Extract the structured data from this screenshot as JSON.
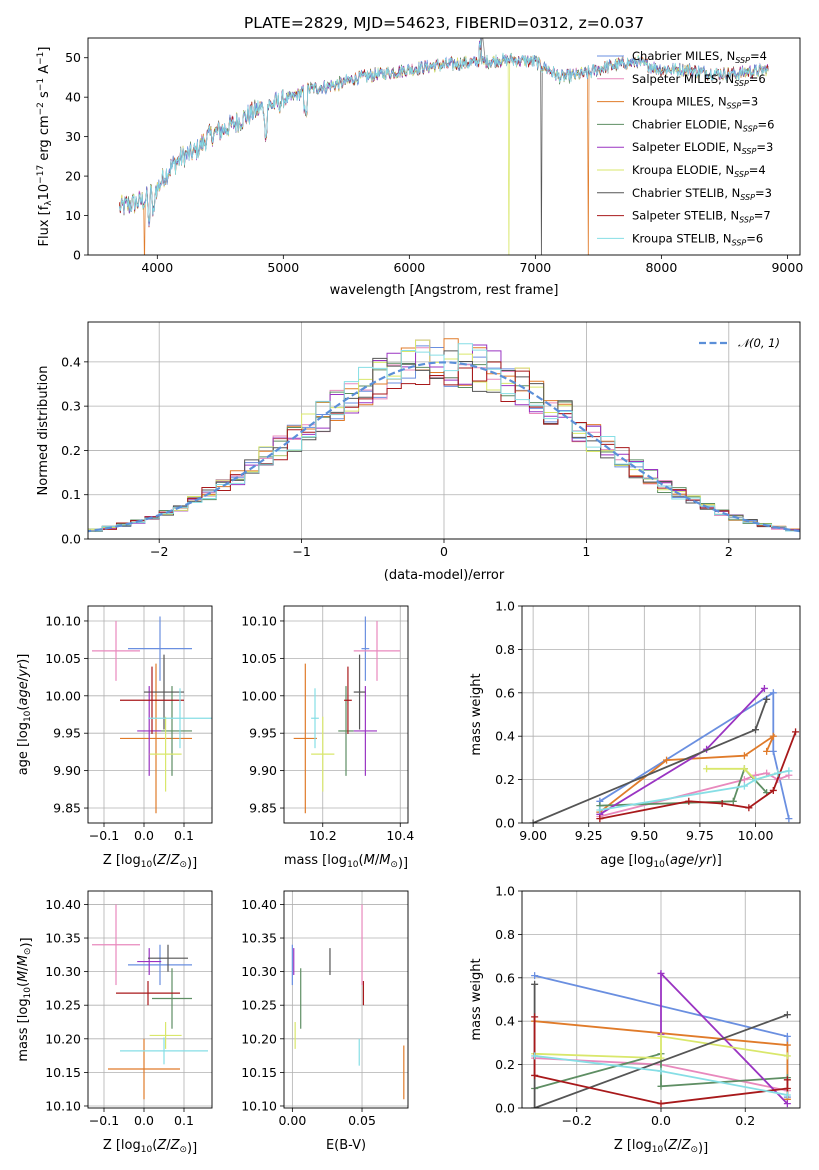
{
  "colors": {
    "Chabrier MILES": "#6a8fe0",
    "Salpeter MILES": "#e889bd",
    "Kroupa MILES": "#e07b2a",
    "Chabrier ELODIE": "#5e8e63",
    "Salpeter ELODIE": "#9a34c2",
    "Kroupa ELODIE": "#d9e76b",
    "Chabrier STELIB": "#555555",
    "Salpeter STELIB": "#a8191b",
    "Kroupa STELIB": "#86dee5"
  },
  "chart_data": [
    {
      "id": "spectrum",
      "type": "line",
      "title": "PLATE=2829, MJD=54623, FIBERID=0312, z=0.037",
      "xlabel": "wavelength [Angstrom, rest frame]",
      "ylabel": "Flux [f",
      "ylabel_parts": {
        "a": "Flux [f",
        "sub": "λ",
        "b": "10",
        "sup1": "−17",
        "c": " erg cm",
        "sup2": "−2",
        "d": " s",
        "sup3": "−1",
        "e": " A",
        "sup4": "−1",
        "f": "]"
      },
      "xlim": [
        3450,
        9100
      ],
      "ylim": [
        0,
        55
      ],
      "xticks": [
        "4000",
        "5000",
        "6000",
        "7000",
        "8000",
        "9000"
      ],
      "yticks": [
        "0",
        "10",
        "20",
        "30",
        "40",
        "50"
      ],
      "wavelength_range": [
        3700,
        8850
      ],
      "trend": [
        [
          3700,
          12
        ],
        [
          3800,
          13
        ],
        [
          3900,
          14
        ],
        [
          4000,
          17
        ],
        [
          4100,
          22
        ],
        [
          4200,
          25
        ],
        [
          4300,
          26
        ],
        [
          4400,
          30
        ],
        [
          4600,
          33
        ],
        [
          4800,
          37
        ],
        [
          5000,
          39
        ],
        [
          5200,
          42
        ],
        [
          5400,
          43
        ],
        [
          5600,
          45
        ],
        [
          5800,
          46
        ],
        [
          6000,
          47
        ],
        [
          6200,
          48
        ],
        [
          6400,
          48.5
        ],
        [
          6600,
          49
        ],
        [
          6800,
          49.5
        ],
        [
          7000,
          49
        ],
        [
          7200,
          45
        ],
        [
          7400,
          46
        ],
        [
          7600,
          48
        ],
        [
          7800,
          49
        ],
        [
          8000,
          47
        ],
        [
          8200,
          47
        ],
        [
          8400,
          46
        ],
        [
          8600,
          46
        ],
        [
          8850,
          47
        ]
      ],
      "series": [
        {
          "name": "Chabrier MILES",
          "nssp": "4"
        },
        {
          "name": "Salpeter MILES",
          "nssp": "6"
        },
        {
          "name": "Kroupa MILES",
          "nssp": "3"
        },
        {
          "name": "Chabrier ELODIE",
          "nssp": "6"
        },
        {
          "name": "Salpeter ELODIE",
          "nssp": "3"
        },
        {
          "name": "Kroupa ELODIE",
          "nssp": "4"
        },
        {
          "name": "Chabrier STELIB",
          "nssp": "3"
        },
        {
          "name": "Salpeter STELIB",
          "nssp": "7"
        },
        {
          "name": "Kroupa STELIB",
          "nssp": "6"
        }
      ],
      "dropouts": [
        {
          "series": "Kroupa MILES",
          "x": 3900
        },
        {
          "series": "Kroupa ELODIE",
          "x": 6790
        },
        {
          "series": "Chabrier STELIB",
          "x": 7050
        },
        {
          "series": "Kroupa MILES",
          "x": 7420
        }
      ]
    },
    {
      "id": "residual-histogram",
      "type": "step",
      "xlabel": "(data-model)/error",
      "ylabel": "Normed distribution",
      "xlim": [
        -2.5,
        2.5
      ],
      "ylim": [
        0,
        0.49
      ],
      "xticks": [
        "−2",
        "−1",
        "0",
        "1",
        "2"
      ],
      "yticks": [
        "0.0",
        "0.1",
        "0.2",
        "0.3",
        "0.4"
      ],
      "legend": {
        "label": "𝒩(0, 1)",
        "placement": "top-right"
      },
      "bin_width": 0.1
    },
    {
      "id": "age-vs-Z",
      "type": "errorbar",
      "xlabel": "Z [log10(Z/Z⊙)]",
      "ylabel": "age  [log10(age/yr)]",
      "xlim": [
        -0.14,
        0.17
      ],
      "ylim": [
        9.83,
        10.12
      ],
      "xticks": [
        "−0.1",
        "0.0",
        "0.1"
      ],
      "yticks": [
        "9.85",
        "9.90",
        "9.95",
        "10.00",
        "10.05",
        "10.10"
      ],
      "points": [
        {
          "series": "Chabrier MILES",
          "x": 0.04,
          "y": 10.063,
          "xerr": 0.08,
          "yerr": 0.043
        },
        {
          "series": "Salpeter MILES",
          "x": -0.07,
          "y": 10.06,
          "xerr": 0.06,
          "yerr": 0.04
        },
        {
          "series": "Kroupa MILES",
          "x": 0.03,
          "y": 9.943,
          "xerr": 0.09,
          "yerr": 0.1
        },
        {
          "series": "Chabrier ELODIE",
          "x": 0.07,
          "y": 9.953,
          "xerr": 0.05,
          "yerr": 0.06
        },
        {
          "series": "Salpeter ELODIE",
          "x": 0.013,
          "y": 9.953,
          "xerr": 0.03,
          "yerr": 0.06
        },
        {
          "series": "Kroupa ELODIE",
          "x": 0.054,
          "y": 9.922,
          "xerr": 0.04,
          "yerr": 0.05
        },
        {
          "series": "Chabrier STELIB",
          "x": 0.05,
          "y": 10.005,
          "xerr": 0.05,
          "yerr": 0.05
        },
        {
          "series": "Salpeter STELIB",
          "x": 0.02,
          "y": 9.994,
          "xerr": 0.08,
          "yerr": 0.045
        },
        {
          "series": "Kroupa STELIB",
          "x": 0.09,
          "y": 9.97,
          "xerr": 0.08,
          "yerr": 0.04
        }
      ]
    },
    {
      "id": "age-vs-mass",
      "type": "errorbar",
      "xlabel": "mass [log10(M/M⊙)]",
      "xlim": [
        10.1,
        10.42
      ],
      "ylim": [
        9.83,
        10.12
      ],
      "xticks": [
        "10.2",
        "10.4"
      ],
      "yticks": [
        "9.85",
        "9.90",
        "9.95",
        "10.00",
        "10.05",
        "10.10"
      ],
      "points": [
        {
          "series": "Chabrier MILES",
          "x": 10.31,
          "y": 10.063,
          "xerr": 0.01,
          "yerr": 0.043
        },
        {
          "series": "Salpeter MILES",
          "x": 10.34,
          "y": 10.06,
          "xerr": 0.06,
          "yerr": 0.04
        },
        {
          "series": "Kroupa MILES",
          "x": 10.155,
          "y": 9.943,
          "xerr": 0.03,
          "yerr": 0.1
        },
        {
          "series": "Chabrier ELODIE",
          "x": 10.26,
          "y": 9.953,
          "xerr": 0.02,
          "yerr": 0.06
        },
        {
          "series": "Salpeter ELODIE",
          "x": 10.31,
          "y": 9.953,
          "xerr": 0.03,
          "yerr": 0.06
        },
        {
          "series": "Kroupa ELODIE",
          "x": 10.2,
          "y": 9.922,
          "xerr": 0.03,
          "yerr": 0.05
        },
        {
          "series": "Chabrier STELIB",
          "x": 10.295,
          "y": 10.005,
          "xerr": 0.015,
          "yerr": 0.05
        },
        {
          "series": "Salpeter STELIB",
          "x": 10.265,
          "y": 9.994,
          "xerr": 0.01,
          "yerr": 0.045
        },
        {
          "series": "Kroupa STELIB",
          "x": 10.18,
          "y": 9.97,
          "xerr": 0.01,
          "yerr": 0.04
        }
      ]
    },
    {
      "id": "weight-vs-age",
      "type": "line",
      "xlabel": "age  [log10(age/yr)]",
      "ylabel": "mass weight",
      "xlim": [
        8.95,
        10.2
      ],
      "ylim": [
        0,
        1
      ],
      "xticks": [
        "9.00",
        "9.25",
        "9.50",
        "9.75",
        "10.00"
      ],
      "yticks": [
        "0.0",
        "0.2",
        "0.4",
        "0.6",
        "0.8",
        "1.0"
      ],
      "series": [
        {
          "name": "Chabrier MILES",
          "x": [
            9.3,
            9.3,
            10.08,
            10.08,
            10.15
          ],
          "y": [
            0.05,
            0.1,
            0.6,
            0.33,
            0.02
          ]
        },
        {
          "name": "Salpeter MILES",
          "x": [
            9.3,
            9.95,
            10.0,
            10.05,
            10.1,
            10.15
          ],
          "y": [
            0.03,
            0.2,
            0.22,
            0.23,
            0.2,
            0.22
          ]
        },
        {
          "name": "Kroupa MILES",
          "x": [
            9.3,
            9.6,
            9.95,
            10.08,
            10.05
          ],
          "y": [
            0.05,
            0.29,
            0.31,
            0.4,
            0.33
          ]
        },
        {
          "name": "Chabrier ELODIE",
          "x": [
            9.3,
            9.9,
            9.95,
            10.05
          ],
          "y": [
            0.08,
            0.1,
            0.25,
            0.14
          ]
        },
        {
          "name": "Salpeter ELODIE",
          "x": [
            9.3,
            9.78,
            10.04
          ],
          "y": [
            0.04,
            0.34,
            0.62
          ]
        },
        {
          "name": "Kroupa ELODIE",
          "x": [
            9.78,
            9.95,
            10.0,
            10.1
          ],
          "y": [
            0.25,
            0.25,
            0.2,
            0.23
          ]
        },
        {
          "name": "Chabrier STELIB",
          "x": [
            9.0,
            10.0,
            10.05
          ],
          "y": [
            0.0,
            0.43,
            0.57
          ]
        },
        {
          "name": "Salpeter STELIB",
          "x": [
            9.3,
            9.7,
            9.85,
            9.97,
            10.08,
            10.18
          ],
          "y": [
            0.02,
            0.1,
            0.09,
            0.07,
            0.15,
            0.42
          ]
        },
        {
          "name": "Kroupa STELIB",
          "x": [
            9.3,
            9.95,
            10.0,
            10.1,
            10.15
          ],
          "y": [
            0.06,
            0.17,
            0.2,
            0.23,
            0.24
          ]
        }
      ]
    },
    {
      "id": "mass-vs-Z",
      "type": "errorbar",
      "xlabel": "Z [log10(Z/Z⊙)]",
      "ylabel": "mass [log10(M/M⊙)]",
      "xlim": [
        -0.14,
        0.17
      ],
      "ylim": [
        10.097,
        10.42
      ],
      "xticks": [
        "−0.1",
        "0.0",
        "0.1"
      ],
      "yticks": [
        "10.10",
        "10.15",
        "10.20",
        "10.25",
        "10.30",
        "10.35",
        "10.40"
      ],
      "points": [
        {
          "series": "Chabrier MILES",
          "x": 0.04,
          "y": 10.31,
          "xerr": 0.08,
          "yerr": 0.03
        },
        {
          "series": "Salpeter MILES",
          "x": -0.07,
          "y": 10.34,
          "xerr": 0.06,
          "yerr": 0.06
        },
        {
          "series": "Kroupa MILES",
          "x": 0.0,
          "y": 10.155,
          "xerr": 0.09,
          "yerr": 0.045
        },
        {
          "series": "Chabrier ELODIE",
          "x": 0.07,
          "y": 10.26,
          "xerr": 0.05,
          "yerr": 0.045
        },
        {
          "series": "Salpeter ELODIE",
          "x": 0.013,
          "y": 10.315,
          "xerr": 0.03,
          "yerr": 0.02
        },
        {
          "series": "Kroupa ELODIE",
          "x": 0.054,
          "y": 10.205,
          "xerr": 0.04,
          "yerr": 0.02
        },
        {
          "series": "Chabrier STELIB",
          "x": 0.06,
          "y": 10.32,
          "xerr": 0.05,
          "yerr": 0.02
        },
        {
          "series": "Salpeter STELIB",
          "x": 0.01,
          "y": 10.268,
          "xerr": 0.08,
          "yerr": 0.018
        },
        {
          "series": "Kroupa STELIB",
          "x": 0.05,
          "y": 10.182,
          "xerr": 0.11,
          "yerr": 0.02
        }
      ]
    },
    {
      "id": "mass-vs-ebv",
      "type": "errorbar",
      "xlabel": "E(B-V)",
      "xlim": [
        -0.006,
        0.083
      ],
      "ylim": [
        10.097,
        10.42
      ],
      "xticks": [
        "0.00",
        "0.05"
      ],
      "yticks": [
        "10.10",
        "10.15",
        "10.20",
        "10.25",
        "10.30",
        "10.35",
        "10.40"
      ],
      "points": [
        {
          "series": "Chabrier MILES",
          "x": 0.0,
          "y": 10.31,
          "xerr": 0,
          "yerr": 0.03
        },
        {
          "series": "Salpeter MILES",
          "x": 0.05,
          "y": 10.34,
          "xerr": 0,
          "yerr": 0.06
        },
        {
          "series": "Kroupa MILES",
          "x": 0.08,
          "y": 10.15,
          "xerr": 0,
          "yerr": 0.04
        },
        {
          "series": "Chabrier ELODIE",
          "x": 0.006,
          "y": 10.26,
          "xerr": 0,
          "yerr": 0.045
        },
        {
          "series": "Salpeter ELODIE",
          "x": 0.001,
          "y": 10.315,
          "xerr": 0,
          "yerr": 0.02
        },
        {
          "series": "Kroupa ELODIE",
          "x": 0.002,
          "y": 10.205,
          "xerr": 0,
          "yerr": 0.02
        },
        {
          "series": "Chabrier STELIB",
          "x": 0.027,
          "y": 10.315,
          "xerr": 0,
          "yerr": 0.02
        },
        {
          "series": "Salpeter STELIB",
          "x": 0.051,
          "y": 10.268,
          "xerr": 0,
          "yerr": 0.018
        },
        {
          "series": "Kroupa STELIB",
          "x": 0.048,
          "y": 10.18,
          "xerr": 0,
          "yerr": 0.02
        }
      ]
    },
    {
      "id": "weight-vs-Z",
      "type": "line",
      "xlabel": "Z [log10(Z/Z⊙)]",
      "ylabel": "mass weight",
      "xlim": [
        -0.33,
        0.33
      ],
      "ylim": [
        0,
        1
      ],
      "xticks": [
        "−0.2",
        "0.0",
        "0.2"
      ],
      "yticks": [
        "0.0",
        "0.2",
        "0.4",
        "0.6",
        "0.8",
        "1.0"
      ],
      "series": [
        {
          "name": "Chabrier MILES",
          "x": [
            -0.3,
            0.3,
            0.3
          ],
          "y": [
            0.61,
            0.33,
            0.05
          ]
        },
        {
          "name": "Salpeter MILES",
          "x": [
            -0.3,
            0.0,
            0.3
          ],
          "y": [
            0.23,
            0.2,
            0.08
          ]
        },
        {
          "name": "Kroupa MILES",
          "x": [
            -0.3,
            0.3,
            0.3
          ],
          "y": [
            0.4,
            0.29,
            0.04
          ]
        },
        {
          "name": "Chabrier ELODIE",
          "x": [
            -0.3,
            0.0,
            0.0,
            0.3
          ],
          "y": [
            0.09,
            0.25,
            0.1,
            0.14
          ]
        },
        {
          "name": "Salpeter ELODIE",
          "x": [
            0.0,
            0.0,
            0.3
          ],
          "y": [
            0.34,
            0.62,
            0.02
          ]
        },
        {
          "name": "Kroupa ELODIE",
          "x": [
            -0.3,
            0.0,
            0.0,
            0.3
          ],
          "y": [
            0.25,
            0.23,
            0.33,
            0.24
          ]
        },
        {
          "name": "Chabrier STELIB",
          "x": [
            -0.3,
            -0.3,
            0.3
          ],
          "y": [
            0.57,
            0.0,
            0.43
          ]
        },
        {
          "name": "Salpeter STELIB",
          "x": [
            -0.3,
            -0.3,
            0.0,
            0.3,
            0.3
          ],
          "y": [
            0.42,
            0.15,
            0.02,
            0.09,
            0.13
          ]
        },
        {
          "name": "Kroupa STELIB",
          "x": [
            -0.3,
            0.0,
            0.3
          ],
          "y": [
            0.24,
            0.17,
            0.06
          ]
        }
      ]
    }
  ]
}
